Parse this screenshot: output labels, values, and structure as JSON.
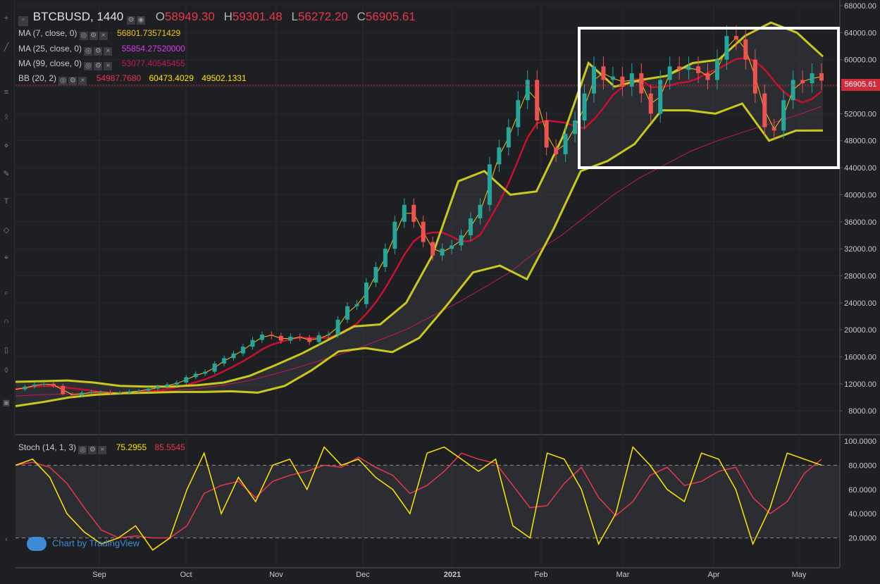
{
  "header": {
    "symbol": "BTCBUSD, 1440",
    "o_label": "O",
    "o_value": "58949.30",
    "h_label": "H",
    "h_value": "59301.48",
    "l_label": "L",
    "l_value": "56272.20",
    "c_label": "C",
    "c_value": "56905.61"
  },
  "indicators": [
    {
      "label": "MA (7, close, 0)",
      "value": "56801.73571429",
      "color": "#f0c419"
    },
    {
      "label": "MA (25, close, 0)",
      "value": "55854.27520000",
      "color": "#d53cf0"
    },
    {
      "label": "MA (99, close, 0)",
      "value": "53077.40545455",
      "color": "#c2185b"
    },
    {
      "label": "BB (20, 2)",
      "values": [
        "54987.7680",
        "60473.4029",
        "49502.1331"
      ],
      "colors": [
        "#e8364c",
        "#ffe600",
        "#ffe600"
      ]
    }
  ],
  "stoch": {
    "label": "Stoch (14, 1, 3)",
    "k": "75.2955",
    "d": "85.5545",
    "k_color": "#ffe600",
    "d_color": "#e8364c"
  },
  "current_price": "56905.61",
  "watermark": "Chart by TradingView",
  "colors": {
    "up": "#26a69a",
    "down": "#ef5350",
    "bb_band": "#c8c81e",
    "bb_mid": "#c8102e",
    "bg": "#1e1f23"
  },
  "chart_data": [
    {
      "type": "candlestick",
      "title": "BTCBUSD, 1440",
      "y_ticks": [
        "68000.00",
        "64000.00",
        "60000.00",
        "56000.00",
        "52000.00",
        "48000.00",
        "44000.00",
        "40000.00",
        "36000.00",
        "32000.00",
        "28000.00",
        "24000.00",
        "20000.00",
        "16000.00",
        "12000.00",
        "8000.00"
      ],
      "x_ticks": [
        "Sep",
        "Oct",
        "Nov",
        "Dec",
        "2021",
        "Feb",
        "Mar",
        "Apr",
        "May"
      ],
      "ylim": [
        5000,
        68000
      ],
      "close_series": [
        11200,
        11600,
        11900,
        12000,
        11700,
        10500,
        10300,
        10700,
        10800,
        10800,
        10600,
        10700,
        10900,
        11000,
        11300,
        11600,
        11900,
        12200,
        13000,
        13500,
        13800,
        15000,
        15800,
        16500,
        17500,
        18500,
        19300,
        19100,
        18400,
        19000,
        18800,
        18200,
        19200,
        19300,
        21500,
        23500,
        23800,
        27000,
        29300,
        32000,
        36000,
        38500,
        36000,
        33000,
        31000,
        32000,
        32500,
        34000,
        36500,
        38500,
        44500,
        47000,
        50000,
        54000,
        57000,
        51000,
        47000,
        46000,
        49000,
        51000,
        55000,
        59000,
        57000,
        57500,
        56000,
        58000,
        55000,
        52000,
        57000,
        59000,
        58500,
        59000,
        58000,
        57000,
        60000,
        63500,
        63000,
        60000,
        55000,
        50000,
        49500,
        54000,
        57000,
        56500,
        58000,
        56900
      ],
      "ma99_series": [
        10200,
        10400,
        10500,
        10600,
        10700,
        10800,
        11000,
        11300,
        11800,
        12500,
        13500,
        14600,
        15800,
        17000,
        18500,
        20000,
        22000,
        24000,
        26200,
        28500,
        31500,
        34000,
        37000,
        40000,
        42500,
        44500,
        46500,
        48000,
        49300,
        50500,
        51700,
        53077
      ],
      "bb_upper_series": [
        12300,
        12400,
        12500,
        12200,
        11700,
        11600,
        11600,
        11800,
        12200,
        13200,
        14800,
        16500,
        18500,
        20500,
        20800,
        24000,
        31000,
        42000,
        43500,
        40000,
        40500,
        48500,
        59500,
        56000,
        57000,
        57600,
        59500,
        60000,
        63500,
        65500,
        64000,
        60473
      ],
      "bb_lower_series": [
        8700,
        9300,
        10000,
        10400,
        10600,
        10700,
        10800,
        10800,
        10900,
        10700,
        11700,
        14000,
        16800,
        17300,
        16700,
        18800,
        23500,
        28500,
        29500,
        27500,
        35000,
        43500,
        45000,
        47500,
        52500,
        52500,
        52000,
        53500,
        48000,
        49500,
        49502
      ],
      "stoch_k": [
        80,
        85,
        70,
        40,
        25,
        15,
        20,
        30,
        10,
        20,
        60,
        90,
        40,
        70,
        50,
        80,
        85,
        60,
        95,
        80,
        85,
        70,
        60,
        40,
        90,
        95,
        85,
        75,
        85,
        30,
        20,
        90,
        85,
        60,
        15,
        40,
        95,
        80,
        60,
        50,
        90,
        85,
        60,
        15,
        45,
        90,
        85,
        80
      ],
      "stoch_ylim": [
        0,
        100
      ],
      "stoch_ticks": [
        "100.0000",
        "80.0000",
        "60.0000",
        "40.0000",
        "20.0000"
      ]
    }
  ]
}
